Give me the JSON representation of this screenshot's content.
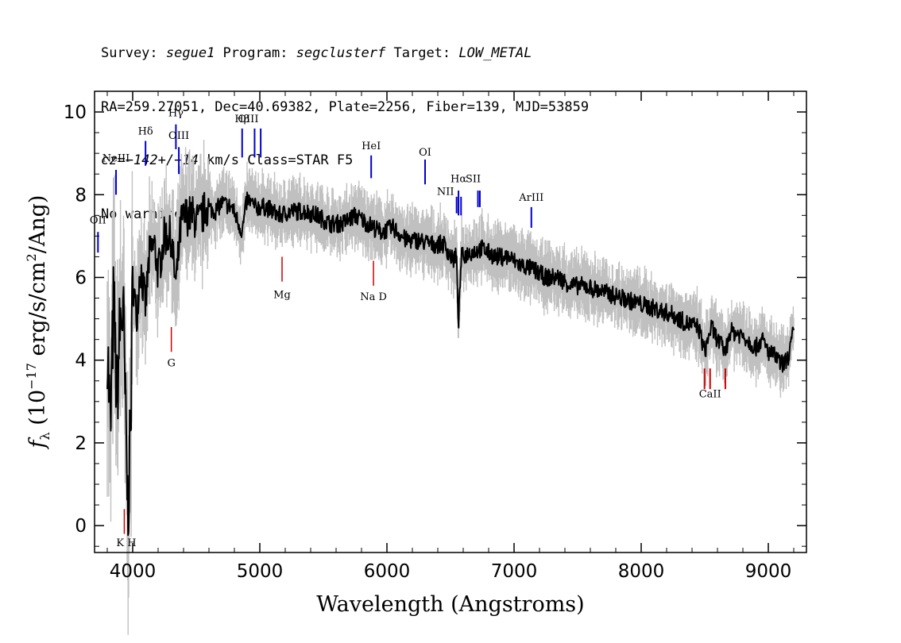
{
  "header": {
    "survey_label": "Survey: ",
    "survey": "segue1",
    "program_label": " Program: ",
    "program": "segclusterf",
    "target_label": " Target: ",
    "target": "LOW_METAL",
    "line2": "RA=259.27051, Dec=40.69382, Plate=2256, Fiber=139, MJD=53859",
    "cz_label": "cz=",
    "cz_value": "−142+/−14",
    "cz_rest": " km/s Class=STAR F5",
    "line4": "No warnings."
  },
  "chart_data": {
    "type": "line",
    "title": "",
    "xlabel": "Wavelength (Angstroms)",
    "ylabel_parts": {
      "f": "f",
      "sub": "λ",
      "pre": " (10",
      "exp": "−17",
      "mid": " erg/s/cm",
      "exp2": "2",
      "post": "/Ang)"
    },
    "xlim": [
      3700,
      9300
    ],
    "ylim": [
      -0.65,
      10.5
    ],
    "xticks": [
      4000,
      5000,
      6000,
      7000,
      8000,
      9000
    ],
    "yticks": [
      0,
      2,
      4,
      6,
      8,
      10
    ],
    "xtick_labels": [
      "4000",
      "5000",
      "6000",
      "7000",
      "8000",
      "9000"
    ],
    "ytick_labels": [
      "0",
      "2",
      "4",
      "6",
      "8",
      "10"
    ],
    "series": [
      {
        "color": "#000000",
        "x": [
          3800,
          3825,
          3850,
          3875,
          3900,
          3925,
          3945,
          3960,
          3970,
          3985,
          4000,
          4030,
          4060,
          4101,
          4130,
          4170,
          4200,
          4250,
          4300,
          4340,
          4380,
          4420,
          4470,
          4520,
          4580,
          4650,
          4700,
          4780,
          4861,
          4900,
          4960,
          5050,
          5150,
          5250,
          5350,
          5450,
          5550,
          5650,
          5750,
          5850,
          5950,
          6050,
          6150,
          6250,
          6350,
          6450,
          6520,
          6545,
          6563,
          6585,
          6650,
          6750,
          6850,
          6950,
          7050,
          7150,
          7250,
          7350,
          7450,
          7550,
          7650,
          7750,
          7850,
          7950,
          8050,
          8150,
          8250,
          8350,
          8450,
          8500,
          8550,
          8600,
          8662,
          8700,
          8800,
          8900,
          8950,
          9000,
          9050,
          9100,
          9150,
          9200
        ],
        "y": [
          4.5,
          2.2,
          5.5,
          3.0,
          4.8,
          5.2,
          2.5,
          0.5,
          1.0,
          2.5,
          6.0,
          5.0,
          6.3,
          5.3,
          6.5,
          6.8,
          6.1,
          7.0,
          7.0,
          5.8,
          7.3,
          7.5,
          7.5,
          7.3,
          7.7,
          7.6,
          7.8,
          7.7,
          7.1,
          7.9,
          7.7,
          7.7,
          7.5,
          7.6,
          7.6,
          7.5,
          7.3,
          7.3,
          7.5,
          7.3,
          7.1,
          7.2,
          6.9,
          6.9,
          6.8,
          6.8,
          6.4,
          6.6,
          4.9,
          6.5,
          6.6,
          6.7,
          6.5,
          6.5,
          6.3,
          6.2,
          6.0,
          6.0,
          5.8,
          5.8,
          5.7,
          5.6,
          5.5,
          5.4,
          5.3,
          5.2,
          5.1,
          4.9,
          4.8,
          4.2,
          4.8,
          4.5,
          4.2,
          4.7,
          4.6,
          4.3,
          4.5,
          4.2,
          4.1,
          3.9,
          4.0,
          4.7
        ]
      }
    ],
    "lines_emission": [
      {
        "name": "OII",
        "x": 3727,
        "label_y": 7.3,
        "mark_y": [
          6.6,
          7.1
        ]
      },
      {
        "name": "NeIII",
        "x": 3869,
        "label_y": 8.8,
        "mark_y": [
          8.0,
          8.6
        ]
      },
      {
        "name": "Hδ",
        "x": 4101,
        "label_y": 9.45,
        "mark_y": [
          8.7,
          9.3
        ]
      },
      {
        "name": "Hγ",
        "x": 4340,
        "label_y": 9.9,
        "mark_y": [
          9.1,
          9.7
        ]
      },
      {
        "name": "OIII",
        "x": 4363,
        "label_y": 9.35,
        "mark_y": [
          8.5,
          9.15
        ]
      },
      {
        "name": "Hβ",
        "x": 4861,
        "label_y": 9.75,
        "mark_y": [
          8.9,
          9.6
        ]
      },
      {
        "name": "OIII",
        "x": 4959,
        "label_y": 9.75,
        "mark_y": [
          8.9,
          9.6
        ]
      },
      {
        "name": "OIII",
        "x": 5007,
        "label_y": 9.75,
        "mark_y": [
          8.9,
          9.6
        ]
      },
      {
        "name": "HeI",
        "x": 5876,
        "label_y": 9.1,
        "mark_y": [
          8.4,
          8.95
        ]
      },
      {
        "name": "OI",
        "x": 6300,
        "label_y": 8.95,
        "mark_y": [
          8.25,
          8.85
        ]
      },
      {
        "name": "NII",
        "x": 6548,
        "label_y": 8.0,
        "mark_y": [
          7.55,
          7.95
        ]
      },
      {
        "name": "Hα",
        "x": 6563,
        "label_y": 8.3,
        "mark_y": [
          7.5,
          8.1
        ]
      },
      {
        "name": "NII",
        "x": 6583,
        "label_y": 8.0,
        "mark_y": [
          7.5,
          7.95
        ]
      },
      {
        "name": "SII",
        "x": 6716,
        "label_y": 8.3,
        "mark_y": [
          7.7,
          8.1
        ]
      },
      {
        "name": "SII",
        "x": 6731,
        "label_y": 8.3,
        "mark_y": [
          7.7,
          8.1
        ]
      },
      {
        "name": "ArIII",
        "x": 7136,
        "label_y": 7.85,
        "mark_y": [
          7.2,
          7.7
        ]
      }
    ],
    "lines_absorption": [
      {
        "name": "G",
        "x": 4304,
        "label_y": 3.85,
        "mark_y": [
          4.2,
          4.8
        ]
      },
      {
        "name": "Mg",
        "x": 5175,
        "label_y": 5.5,
        "mark_y": [
          5.9,
          6.5
        ]
      },
      {
        "name": "Na D",
        "x": 5894,
        "label_y": 5.45,
        "mark_y": [
          5.8,
          6.4
        ]
      },
      {
        "name": "K H",
        "x": 3950,
        "label_y": -0.5,
        "mark_y": [
          -0.2,
          0.4
        ]
      },
      {
        "name": "CaII",
        "x": 8542,
        "label_y": 3.1,
        "mark_y": [
          3.3,
          3.8
        ]
      }
    ]
  }
}
